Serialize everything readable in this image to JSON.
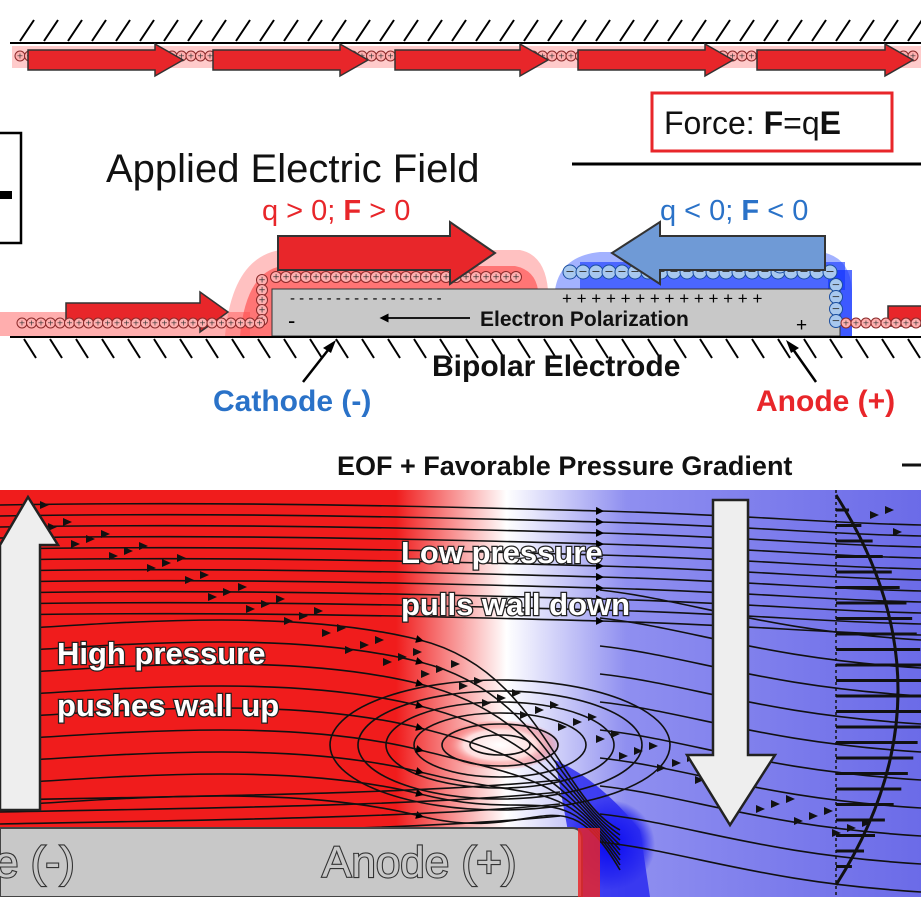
{
  "top_panel": {
    "force_box": {
      "prefix": "Force: ",
      "bold_f": "F",
      "eq": "=q",
      "bold_e": "E"
    },
    "applied_field_label": "Applied Electric Field",
    "positive_force": {
      "q": "q > 0; ",
      "bold_f": "F",
      "rest": " > 0"
    },
    "negative_force": {
      "q": "q < 0; ",
      "bold_f": "F",
      "rest": " < 0"
    },
    "electron_polarization_label": "Electron Polarization",
    "bipolar_electrode_label": "Bipolar Electrode",
    "cathode_label": "Cathode (-)",
    "anode_label": "Anode (+)",
    "minus_sign": "-",
    "plus_sign": "+"
  },
  "bottom_panel": {
    "title": "EOF + Favorable Pressure Gradient",
    "high_pressure_line1": "High pressure",
    "high_pressure_line2": "pushes wall up",
    "low_pressure_line1": "Low pressure",
    "low_pressure_line2": "pulls wall down",
    "cathode_partial": "e (-)",
    "anode_label": "Anode (+)"
  },
  "colors": {
    "positive": "#e8262a",
    "negative": "#1f4fd8",
    "positive_text": "#e8262a",
    "negative_text": "#2a72c8",
    "electrode_gray": "#c8c8c8"
  }
}
